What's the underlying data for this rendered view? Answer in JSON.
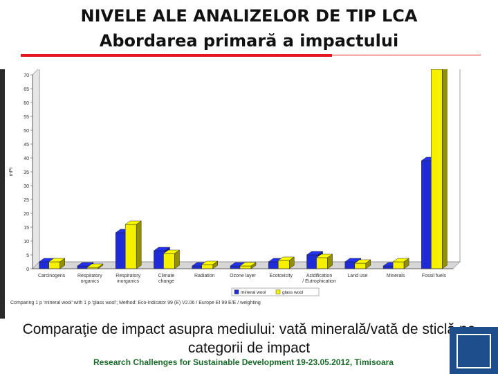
{
  "slide": {
    "title_line1": "NIVELE ALE ANALIZELOR DE TIP LCA",
    "title_line2": "Abordarea primară a impactului",
    "caption": "Comparaţie de impact asupra mediului: vată minerală/vată de sticlă pe categorii de impact",
    "footer": "Research Challenges for Sustainable Development 19-23.05.2012, Timisoara"
  },
  "colors": {
    "mineral_wool": "#1e2bd6",
    "glass_wool": "#f5f000",
    "accent_red": "#e8141f"
  },
  "chart_data": {
    "type": "bar",
    "ylabel": "mPt",
    "ylim": [
      0,
      70
    ],
    "yticks": [
      0,
      5,
      10,
      15,
      20,
      25,
      30,
      35,
      40,
      45,
      50,
      55,
      60,
      65,
      70
    ],
    "categories": [
      "Carcinogens",
      "Respiratory organics",
      "Respiratory inorganics",
      "Climate change",
      "Radiation",
      "Ozone layer",
      "Ecotoxicity",
      "Acidification / Eutrophication",
      "Land use",
      "Minerals",
      "Fossil fuels"
    ],
    "series": [
      {
        "name": "mineral wool",
        "values": [
          2.5,
          1,
          13,
          6.5,
          1,
          1,
          2.5,
          5,
          2.5,
          1,
          39
        ]
      },
      {
        "name": "glass wool",
        "values": [
          2.5,
          0.5,
          16,
          5.5,
          1.5,
          1,
          3,
          4,
          2,
          2.5,
          72
        ]
      }
    ],
    "legend_position": "bottom-right",
    "note": "Comparing 1 p 'mineral wool' with 1 p 'glass wool'; Method: Eco-indicator 99 (E) V2.06 / Europe EI 99 E/E / weighting"
  }
}
